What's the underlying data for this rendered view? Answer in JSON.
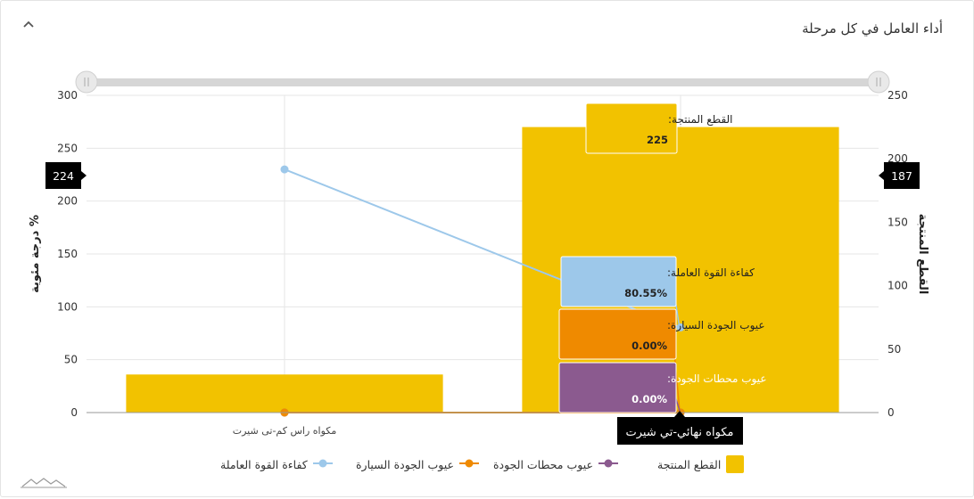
{
  "header": {
    "title": "أداء العامل في كل مرحلة"
  },
  "colors": {
    "produced": "#f2c200",
    "efficiency": "#9dc8ea",
    "car_defects": "#ef8a00",
    "station_defects": "#8b5a8f",
    "tooltip_dark": "#000000"
  },
  "chart_data": {
    "type": "bar",
    "categories": [
      "مكواه راس كم-تى شيرت",
      "مكواه نهائي-تي شيرت"
    ],
    "y_left": {
      "label": "درجة مئوية %",
      "ticks": [
        0,
        50,
        100,
        150,
        200,
        250,
        300
      ],
      "range": [
        0,
        300
      ]
    },
    "y_right": {
      "label": "القطع المنتجة",
      "ticks": [
        0,
        50,
        100,
        150,
        200,
        250
      ],
      "range": [
        0,
        250
      ]
    },
    "series": [
      {
        "name": "القطع المنتجة",
        "type": "bar",
        "axis": "right",
        "values": [
          30,
          225
        ],
        "color": "#f2c200"
      },
      {
        "name": "عيوب محطات الجودة",
        "type": "line",
        "axis": "left",
        "values": [
          0,
          0
        ],
        "color": "#8b5a8f"
      },
      {
        "name": "عيوب الجودة السيارة",
        "type": "line",
        "axis": "left",
        "values": [
          0,
          0
        ],
        "color": "#ef8a00"
      },
      {
        "name": "كفاءة القوة العاملة",
        "type": "line",
        "axis": "left",
        "values": [
          230,
          80.55
        ],
        "color": "#9dc8ea"
      }
    ],
    "crosshair": {
      "left_value_label": "224",
      "right_value_label": "187",
      "category_label": "مكواه نهائي-تي شيرت"
    },
    "tooltips": [
      {
        "label": "القطع المنتجة:",
        "value": "225"
      },
      {
        "label": "كفاءة القوة العاملة:",
        "value": "80.55%"
      },
      {
        "label": "عيوب الجودة السيارة:",
        "value": "0.00%"
      },
      {
        "label": "عيوب محطات الجودة:",
        "value": "0.00%"
      }
    ],
    "legend_position": "bottom",
    "grid": true
  },
  "legend": [
    {
      "label": "القطع المنتجة"
    },
    {
      "label": "عيوب محطات الجودة"
    },
    {
      "label": "عيوب الجودة السيارة"
    },
    {
      "label": "كفاءة القوة العاملة"
    }
  ]
}
